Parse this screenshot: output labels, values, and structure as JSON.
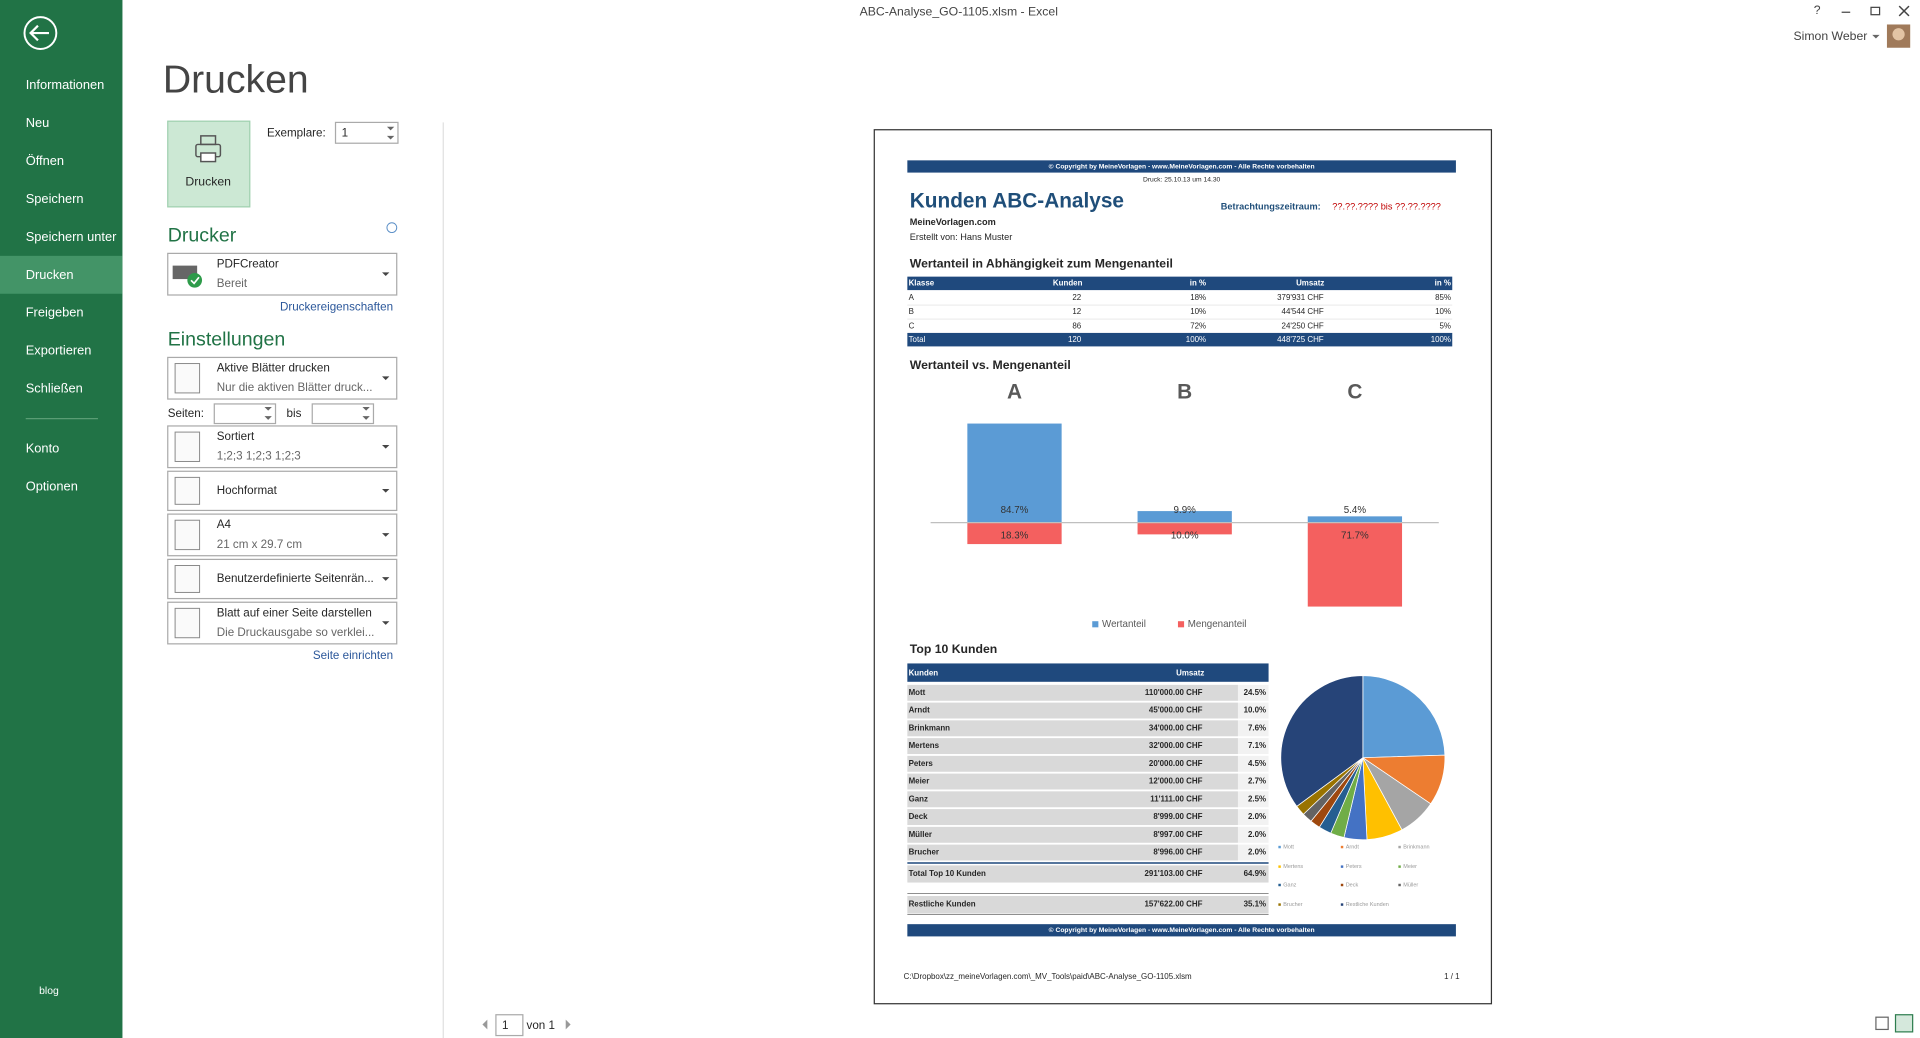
{
  "window": {
    "title": "ABC-Analyse_GO-1105.xlsm - Excel",
    "help": "?",
    "user": "Simon Weber"
  },
  "sidebar": {
    "items": [
      "Informationen",
      "Neu",
      "Öffnen",
      "Speichern",
      "Speichern unter",
      "Drucken",
      "Freigeben",
      "Exportieren",
      "Schließen",
      "Konto",
      "Optionen"
    ],
    "footer": "blog"
  },
  "print_panel": {
    "title": "Drucken",
    "print_button": "Drucken",
    "copies_label": "Exemplare:",
    "copies": 1,
    "printer_heading": "Drucker",
    "printer": {
      "name": "PDFCreator",
      "status": "Bereit"
    },
    "printer_properties": "Druckereigenschaften",
    "settings_heading": "Einstellungen",
    "settings": [
      {
        "title": "Aktive Blätter drucken",
        "subtitle": "Nur die aktiven Blätter druck..."
      },
      {
        "title": "Sortiert",
        "subtitle": "1;2;3    1;2;3    1;2;3"
      },
      {
        "title": "Hochformat"
      },
      {
        "title": "A4",
        "subtitle": "21  cm x 29.7  cm"
      },
      {
        "title": "Benutzerdefinierte Seitenrän..."
      },
      {
        "title": "Blatt auf einer Seite darstellen",
        "subtitle": "Die Druckausgabe so verklei..."
      }
    ],
    "pages_label": "Seiten:",
    "pages_to_label": "bis",
    "page_setup": "Seite einrichten"
  },
  "navigation": {
    "page": 1,
    "of_label": "von 1"
  },
  "preview": {
    "copyright": "© Copyright by MeineVorlagen - www.MeineVorlagen.com - Alle Rechte vorbehalten",
    "print_date": "Druck: 25.10.13 um 14.30",
    "title": "Kunden ABC-Analyse",
    "period_label": "Betrachtungszeitraum:",
    "period": "??.??.???? bis ??.??.????",
    "company": "MeineVorlagen.com",
    "author": "Erstellt von: Hans Muster",
    "abc_heading": "Wertanteil in Abhängigkeit zum Mengenanteil",
    "abc_table": {
      "header": [
        "Klasse",
        "Kunden",
        "in %",
        "Umsatz",
        "in %"
      ],
      "rows": [
        [
          "A",
          22,
          "18%",
          "379'931 CHF",
          "85%"
        ],
        [
          "B",
          12,
          "10%",
          "44'544 CHF",
          "10%"
        ],
        [
          "C",
          86,
          "72%",
          "24'250 CHF",
          "5%"
        ]
      ],
      "total": [
        "Total",
        120,
        "100%",
        "448'725 CHF",
        "100%"
      ]
    },
    "top10_heading": "Top 10 Kunden",
    "top10_table": {
      "header": [
        "Kunden",
        "Umsatz"
      ],
      "rows": [
        [
          "Mott",
          "110'000.00 CHF",
          "24.5%"
        ],
        [
          "Arndt",
          "45'000.00 CHF",
          "10.0%"
        ],
        [
          "Brinkmann",
          "34'000.00 CHF",
          "7.6%"
        ],
        [
          "Mertens",
          "32'000.00 CHF",
          "7.1%"
        ],
        [
          "Peters",
          "20'000.00 CHF",
          "4.5%"
        ],
        [
          "Meier",
          "12'000.00 CHF",
          "2.7%"
        ],
        [
          "Ganz",
          "11'111.00 CHF",
          "2.5%"
        ],
        [
          "Deck",
          "8'999.00 CHF",
          "2.0%"
        ],
        [
          "Müller",
          "8'997.00 CHF",
          "2.0%"
        ],
        [
          "Brucher",
          "8'996.00 CHF",
          "2.0%"
        ]
      ],
      "total": [
        "Total Top 10 Kunden",
        "291'103.00 CHF",
        "64.9%"
      ],
      "rest": [
        "Restliche Kunden",
        "157'622.00 CHF",
        "35.1%"
      ]
    },
    "footer_copyright": "© Copyright by MeineVorlagen - www.MeineVorlagen.com - Alle Rechte vorbehalten",
    "file_path": "C:\\Dropbox\\zz_meineVorlagen.com\\_MV_Tools\\paid\\ABC-Analyse_GO-1105.xlsm",
    "page_number": "1 / 1"
  },
  "chart_data": [
    {
      "type": "bar",
      "title": "Wertanteil vs. Mengenanteil",
      "categories": [
        "A",
        "B",
        "C"
      ],
      "series": [
        {
          "name": "Wertanteil",
          "color": "#5b9bd5",
          "values": [
            84.7,
            9.9,
            5.4
          ],
          "value_labels": [
            "84.7%",
            "9.9%",
            "5.4%"
          ]
        },
        {
          "name": "Mengenanteil",
          "color": "#f4605f",
          "values": [
            18.3,
            10.0,
            71.7
          ],
          "value_labels": [
            "18.3%",
            "10.0%",
            "71.7%"
          ]
        }
      ]
    },
    {
      "type": "pie",
      "categories": [
        "Mott",
        "Arndt",
        "Brinkmann",
        "Mertens",
        "Peters",
        "Meier",
        "Ganz",
        "Deck",
        "Müller",
        "Brucher",
        "Restliche Kunden"
      ],
      "values": [
        24.5,
        10.0,
        7.6,
        7.1,
        4.5,
        2.7,
        2.5,
        2.0,
        2.0,
        2.0,
        35.1
      ],
      "colors": [
        "#5b9bd5",
        "#ed7d31",
        "#a5a5a5",
        "#ffc000",
        "#4472c4",
        "#70ad47",
        "#255e91",
        "#9e480e",
        "#636363",
        "#997300",
        "#264478"
      ]
    }
  ]
}
